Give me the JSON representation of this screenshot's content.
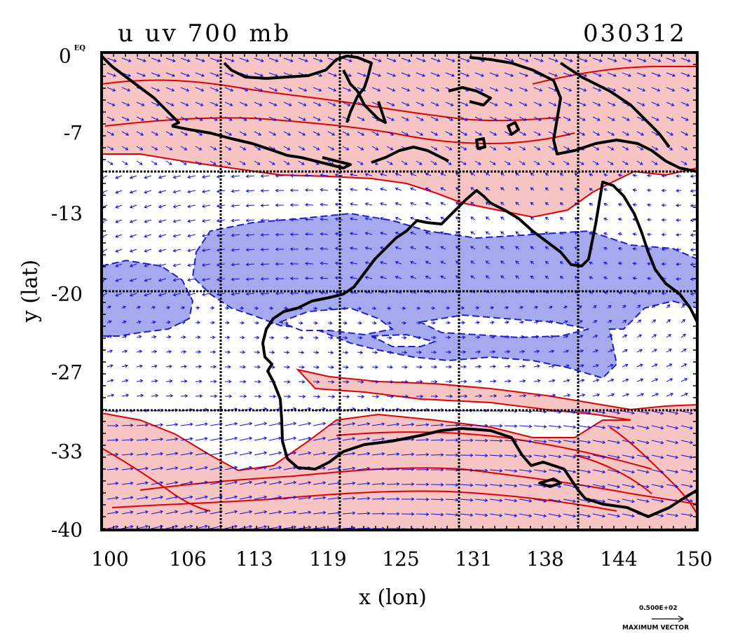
{
  "header": {
    "title": "u uv 700 mb",
    "date": "030312"
  },
  "axes": {
    "xlabel": "x (lon)",
    "ylabel": "y (lat)",
    "x_ticks": [
      "100",
      "106",
      "113",
      "119",
      "125",
      "131",
      "138",
      "144",
      "150"
    ],
    "y_ticks": [
      "0",
      "-7",
      "-13",
      "-20",
      "-27",
      "-33",
      "-40"
    ],
    "origin_suffix": "EQ",
    "xlim": [
      100,
      150
    ],
    "ylim": [
      -40,
      0
    ]
  },
  "legend": {
    "vector_value": "0.500E+02",
    "vector_label": "MAXIMUM VECTOR"
  },
  "colors": {
    "positive_fill": "#f7c4c4",
    "positive_contour": "#e00000",
    "negative_fill": "#a7a9ee",
    "negative_contour": "#1a1fd0",
    "vector": "#1010e0",
    "coast": "#000000"
  }
}
